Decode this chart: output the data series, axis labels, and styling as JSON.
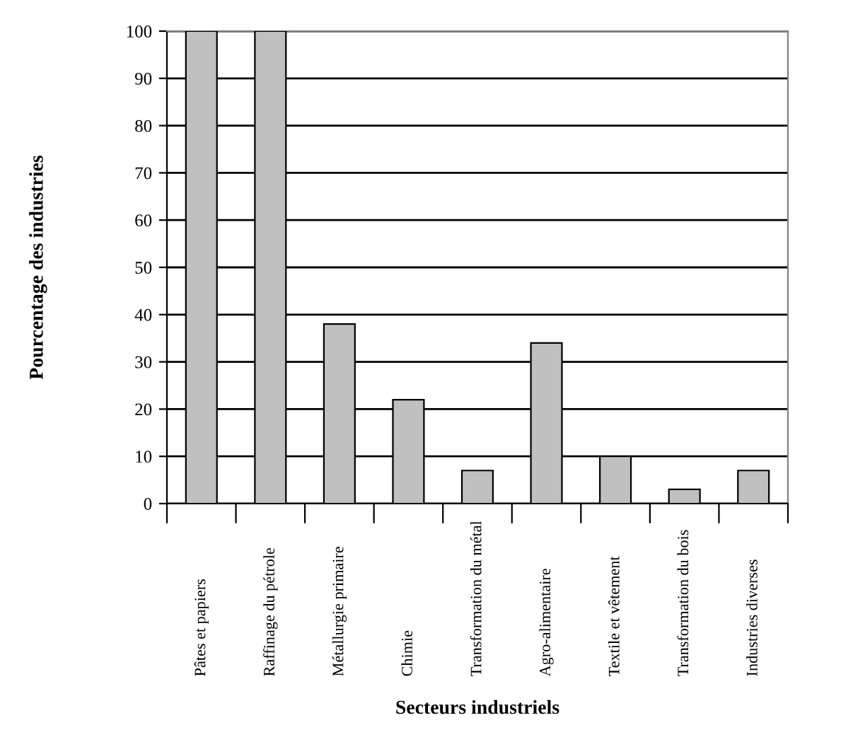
{
  "chart_data": {
    "type": "bar",
    "xlabel": "Secteurs industriels",
    "ylabel": "Pourcentage des industries",
    "categories": [
      "Pâtes et papiers",
      "Raffinage du pétrole",
      "Métallurgie primaire",
      "Chimie",
      "Transformation du métal",
      "Agro-alimentaire",
      "Textile et vêtement",
      "Transformation du bois",
      "Industries diverses"
    ],
    "values": [
      100,
      100,
      38,
      22,
      7,
      34,
      10,
      3,
      7
    ],
    "color": "#c0c0c0",
    "ylim": [
      0,
      100
    ],
    "yticks": [
      0,
      10,
      20,
      30,
      40,
      50,
      60,
      70,
      80,
      90,
      100
    ],
    "grid": "y"
  }
}
